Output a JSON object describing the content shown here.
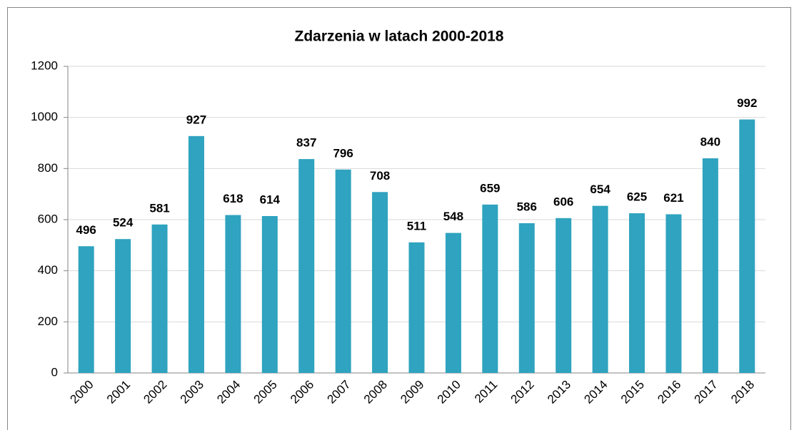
{
  "chart_data": {
    "type": "bar",
    "title": "Zdarzenia w latach 2000-2018",
    "categories": [
      "2000",
      "2001",
      "2002",
      "2003",
      "2004",
      "2005",
      "2006",
      "2007",
      "2008",
      "2009",
      "2010",
      "2011",
      "2012",
      "2013",
      "2014",
      "2015",
      "2016",
      "2017",
      "2018"
    ],
    "values": [
      496,
      524,
      581,
      927,
      618,
      614,
      837,
      796,
      708,
      511,
      548,
      659,
      586,
      606,
      654,
      625,
      621,
      840,
      992
    ],
    "color": "#2fa3bf",
    "ylim": [
      0,
      1200
    ],
    "yticks": [
      0,
      200,
      400,
      600,
      800,
      1000,
      1200
    ],
    "grid": true
  }
}
